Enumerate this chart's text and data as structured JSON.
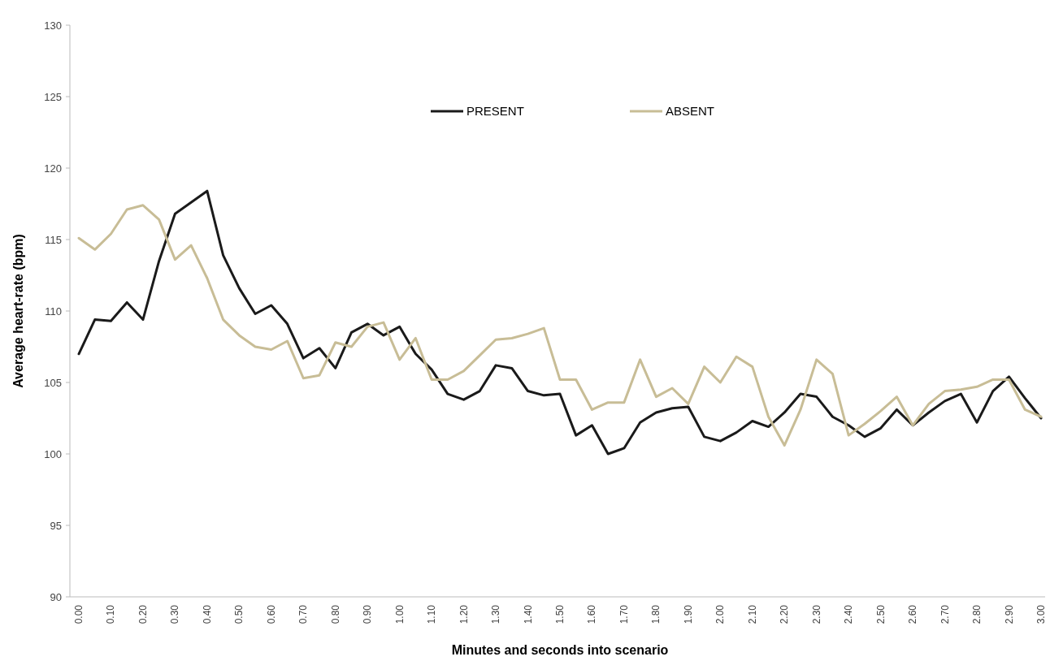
{
  "chart_data": {
    "type": "line",
    "xlabel": "Minutes and seconds into scenario",
    "ylabel": "Average heart-rate (bpm)",
    "categories": [
      "0.00",
      null,
      "0.10",
      null,
      "0.20",
      null,
      "0.30",
      null,
      "0.40",
      null,
      "0.50",
      null,
      "0.60",
      null,
      "0.70",
      null,
      "0.80",
      null,
      "0.90",
      null,
      "1.00",
      null,
      "1.10",
      null,
      "1.20",
      null,
      "1.30",
      null,
      "1.40",
      null,
      "1.50",
      null,
      "1.60",
      null,
      "1.70",
      null,
      "1.80",
      null,
      "1.90",
      null,
      "2.00",
      null,
      "2.10",
      null,
      "2.20",
      null,
      "2.30",
      null,
      "2.40",
      null,
      "2.50",
      null,
      "2.60",
      null,
      "2.70",
      null,
      "2.80",
      null,
      "2.90",
      null,
      "3.00"
    ],
    "series": [
      {
        "name": "PRESENT",
        "color": "#1a1a1a",
        "values": [
          107.0,
          109.4,
          109.3,
          110.6,
          109.4,
          113.5,
          116.8,
          117.6,
          118.4,
          113.9,
          111.6,
          109.8,
          110.4,
          109.1,
          106.7,
          107.4,
          106.0,
          108.5,
          109.1,
          108.3,
          108.9,
          107.0,
          105.9,
          104.2,
          103.8,
          104.4,
          106.2,
          106.0,
          104.4,
          104.1,
          104.2,
          101.3,
          102.0,
          100.0,
          100.4,
          102.2,
          102.9,
          103.2,
          103.3,
          101.2,
          100.9,
          101.5,
          102.3,
          101.9,
          102.9,
          104.2,
          104.0,
          102.6,
          102.0,
          101.2,
          101.8,
          103.1,
          102.0,
          102.9,
          103.7,
          104.2,
          102.2,
          104.4,
          105.4,
          103.9,
          102.5
        ]
      },
      {
        "name": "ABSENT",
        "color": "#c8bd96",
        "values": [
          115.1,
          114.3,
          115.4,
          117.1,
          117.4,
          116.4,
          113.6,
          114.6,
          112.3,
          109.4,
          108.3,
          107.5,
          107.3,
          107.9,
          105.3,
          105.5,
          107.8,
          107.5,
          108.9,
          109.2,
          106.6,
          108.1,
          105.2,
          105.2,
          105.8,
          106.9,
          108.0,
          108.1,
          108.4,
          108.8,
          105.2,
          105.2,
          103.1,
          103.6,
          103.6,
          106.6,
          104.0,
          104.6,
          103.5,
          106.1,
          105.0,
          106.8,
          106.1,
          102.6,
          100.6,
          103.1,
          106.6,
          105.6,
          101.3,
          102.1,
          103.0,
          104.0,
          102.0,
          103.5,
          104.4,
          104.5,
          104.7,
          105.2,
          105.2,
          103.1,
          102.6
        ]
      }
    ],
    "ylim": [
      90,
      130
    ],
    "yticks": [
      90,
      95,
      100,
      105,
      110,
      115,
      120,
      125,
      130
    ],
    "grid": false,
    "legend": "top"
  }
}
